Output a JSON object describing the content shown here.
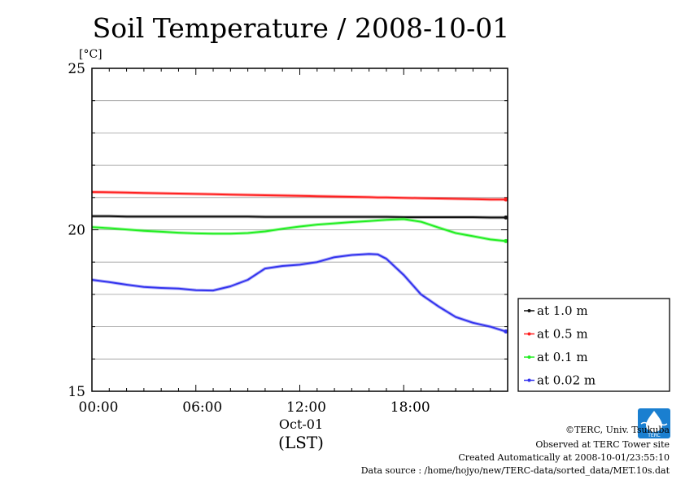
{
  "chart_data": {
    "type": "line",
    "title": "Soil Temperature / 2008-10-01",
    "yunit": "[°C]",
    "ylim": [
      15,
      25
    ],
    "yticks": [
      "25",
      "20",
      "15"
    ],
    "xlim": [
      0,
      24
    ],
    "xticks": [
      "00:00",
      "06:00",
      "12:00",
      "18:00"
    ],
    "xdate": "Oct-01",
    "xlabel": "(LST)",
    "grid": true,
    "legend_position": "right-bottom",
    "x": [
      0,
      1,
      2,
      3,
      4,
      5,
      6,
      7,
      8,
      9,
      10,
      11,
      12,
      13,
      14,
      15,
      16,
      16.5,
      17,
      18,
      19,
      20,
      21,
      22,
      23,
      23.9
    ],
    "series": [
      {
        "name": "at 1.0 m",
        "color": "#111111",
        "values": [
          20.42,
          20.42,
          20.41,
          20.41,
          20.41,
          20.41,
          20.41,
          20.41,
          20.41,
          20.41,
          20.4,
          20.4,
          20.4,
          20.4,
          20.4,
          20.4,
          20.4,
          20.4,
          20.4,
          20.39,
          20.39,
          20.39,
          20.39,
          20.39,
          20.38,
          20.38
        ]
      },
      {
        "name": "at 0.5 m",
        "color": "#ff2020",
        "values": [
          21.17,
          21.16,
          21.15,
          21.14,
          21.13,
          21.12,
          21.11,
          21.1,
          21.09,
          21.08,
          21.07,
          21.06,
          21.05,
          21.04,
          21.03,
          21.02,
          21.01,
          21.0,
          21.0,
          20.99,
          20.98,
          20.97,
          20.96,
          20.95,
          20.94,
          20.94
        ]
      },
      {
        "name": "at 0.1 m",
        "color": "#22ee22",
        "values": [
          20.08,
          20.05,
          20.01,
          19.97,
          19.94,
          19.91,
          19.89,
          19.88,
          19.88,
          19.9,
          19.95,
          20.03,
          20.1,
          20.16,
          20.2,
          20.24,
          20.27,
          20.29,
          20.31,
          20.33,
          20.25,
          20.07,
          19.9,
          19.8,
          19.7,
          19.65
        ]
      },
      {
        "name": "at 0.02 m",
        "color": "#3333ee",
        "values": [
          18.45,
          18.38,
          18.3,
          18.23,
          18.2,
          18.18,
          18.13,
          18.12,
          18.25,
          18.45,
          18.8,
          18.88,
          18.92,
          19.0,
          19.15,
          19.22,
          19.25,
          19.24,
          19.1,
          18.6,
          18.0,
          17.63,
          17.3,
          17.12,
          17.0,
          16.85
        ]
      }
    ]
  },
  "footer": {
    "copyright": "©TERC, Univ. Tsukuba",
    "observed": "Observed at TERC Tower site",
    "created": "Created Automatically at 2008-10-01/23:55:10",
    "source": "Data source : /home/hojyo/new/TERC-data/sorted_data/MET.10s.dat",
    "logo_text": "TERC",
    "logo_color": "#1a7fd0"
  }
}
